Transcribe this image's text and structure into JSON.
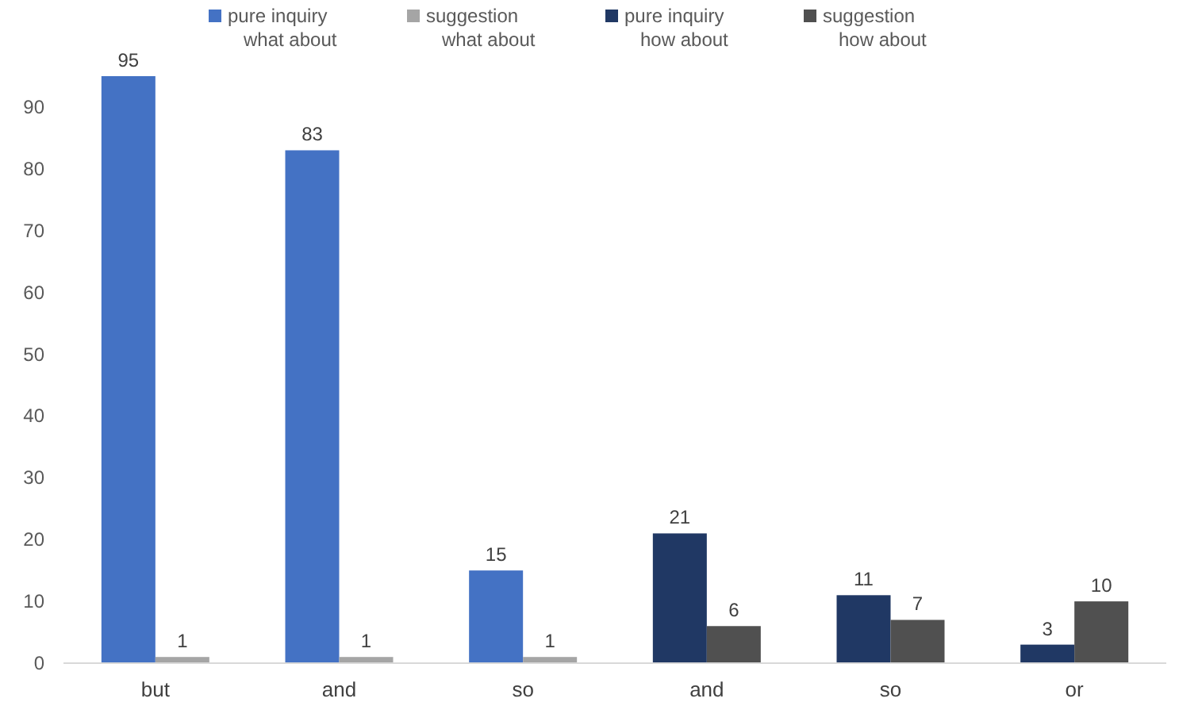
{
  "chart_data": {
    "type": "bar",
    "categories": [
      "but",
      "and",
      "so",
      "and",
      "so",
      "or"
    ],
    "series": [
      {
        "name": "pure inquiry\nwhat about",
        "color": "#4472c4",
        "values": [
          95,
          83,
          15,
          null,
          null,
          null
        ]
      },
      {
        "name": "suggestion\nwhat about",
        "color": "#a5a5a5",
        "values": [
          1,
          1,
          1,
          null,
          null,
          null
        ]
      },
      {
        "name": "pure inquiry\nhow about",
        "color": "#203864",
        "values": [
          null,
          null,
          null,
          21,
          11,
          3
        ]
      },
      {
        "name": "suggestion\nhow about",
        "color": "#505050",
        "values": [
          null,
          null,
          null,
          6,
          7,
          10
        ]
      }
    ],
    "ylim": [
      0,
      95
    ],
    "yticks": [
      0,
      10,
      20,
      30,
      40,
      50,
      60,
      70,
      80,
      90
    ],
    "data_labels": true,
    "grid": false,
    "legend": "top"
  }
}
